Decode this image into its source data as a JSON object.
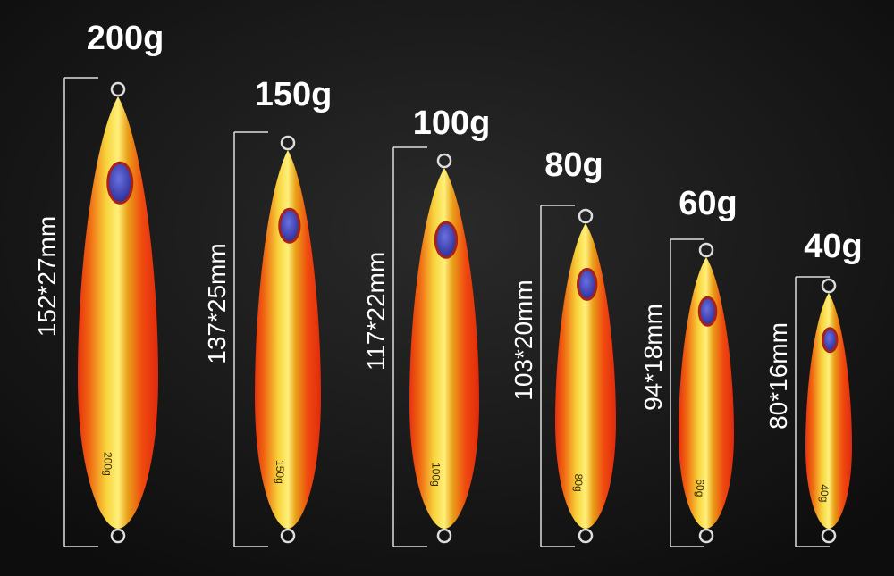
{
  "items": [
    {
      "weight": "200g",
      "size": "152*27mm",
      "body_label": "200g"
    },
    {
      "weight": "150g",
      "size": "137*25mm",
      "body_label": "150g"
    },
    {
      "weight": "100g",
      "size": "117*22mm",
      "body_label": "100g"
    },
    {
      "weight": "80g",
      "size": "103*20mm",
      "body_label": "80g"
    },
    {
      "weight": "60g",
      "size": "94*18mm",
      "body_label": "60g"
    },
    {
      "weight": "40g",
      "size": "80*16mm",
      "body_label": "40g"
    }
  ]
}
